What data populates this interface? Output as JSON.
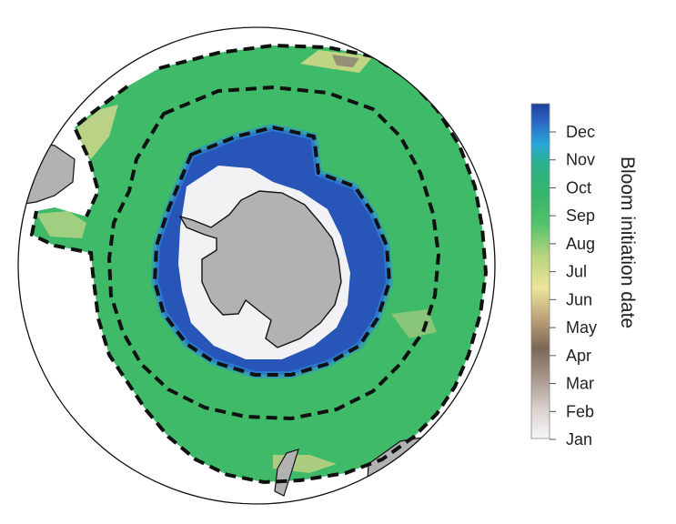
{
  "colorbar": {
    "title": "Bloom initiation date",
    "months": [
      "Dec",
      "Nov",
      "Oct",
      "Sep",
      "Aug",
      "Jul",
      "Jun",
      "May",
      "Apr",
      "Mar",
      "Feb",
      "Jan"
    ],
    "colors": [
      "#1f4fa8",
      "#2f8fd8",
      "#31b068",
      "#3dba6a",
      "#55c16a",
      "#b6d27a",
      "#e9e192",
      "#c2a87a",
      "#7f6a58",
      "#a8958a",
      "#d9d1cc",
      "#f5f5f5"
    ]
  },
  "map_colors": {
    "land": "#b2b2b2",
    "open_ocean_green": "#3fba68",
    "inner_blue": "#2856b8",
    "ice_white": "#f2f2f5",
    "yellow_patches": "#d8d889",
    "brown_patches": "#8a7f74",
    "front_line": "#111111"
  }
}
